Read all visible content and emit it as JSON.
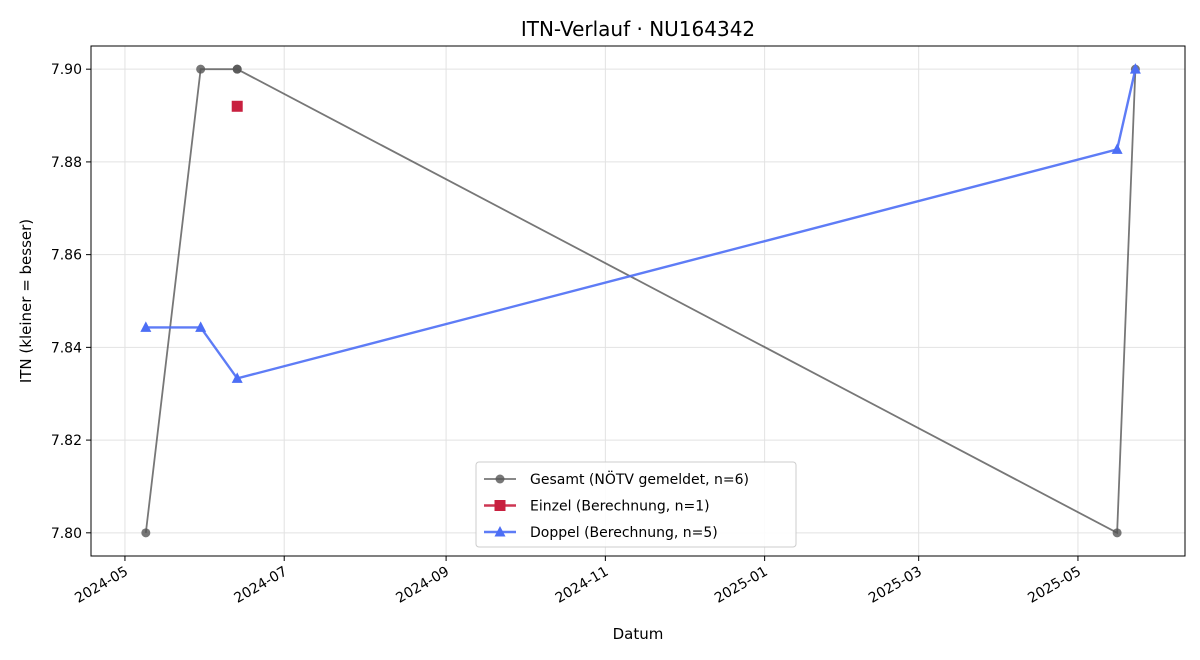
{
  "chart_data": {
    "type": "line",
    "title": "ITN-Verlauf · NU164342",
    "xlabel": "Datum",
    "ylabel": "ITN  (kleiner = besser)",
    "xlim": [
      "2024-04-18",
      "2025-06-11"
    ],
    "ylim": [
      7.795,
      7.905
    ],
    "x_ticks": [
      "2024-05",
      "2024-07",
      "2024-09",
      "2024-11",
      "2025-01",
      "2025-03",
      "2025-05"
    ],
    "y_ticks": [
      "7.80",
      "7.82",
      "7.84",
      "7.86",
      "7.88",
      "7.90"
    ],
    "grid": true,
    "legend_position": "lower center",
    "series": [
      {
        "name": "Gesamt (NÖTV gemeldet, n=6)",
        "color": "#555555",
        "marker": "circle",
        "x": [
          "2024-05-09",
          "2024-05-30",
          "2024-06-13",
          "2024-06-13",
          "2025-05-16",
          "2025-05-23"
        ],
        "y": [
          7.8,
          7.9,
          7.9,
          7.9,
          7.8,
          7.9
        ]
      },
      {
        "name": "Einzel (Berechnung, n=1)",
        "color": "#c8203f",
        "marker": "square",
        "x": [
          "2024-06-13"
        ],
        "y": [
          7.892
        ]
      },
      {
        "name": "Doppel (Berechnung, n=5)",
        "color": "#4c6ef5",
        "marker": "triangle",
        "x": [
          "2024-05-09",
          "2024-05-30",
          "2024-06-13",
          "2025-05-16",
          "2025-05-23"
        ],
        "y": [
          7.8443,
          7.8443,
          7.8333,
          7.8827,
          7.9
        ]
      }
    ]
  }
}
